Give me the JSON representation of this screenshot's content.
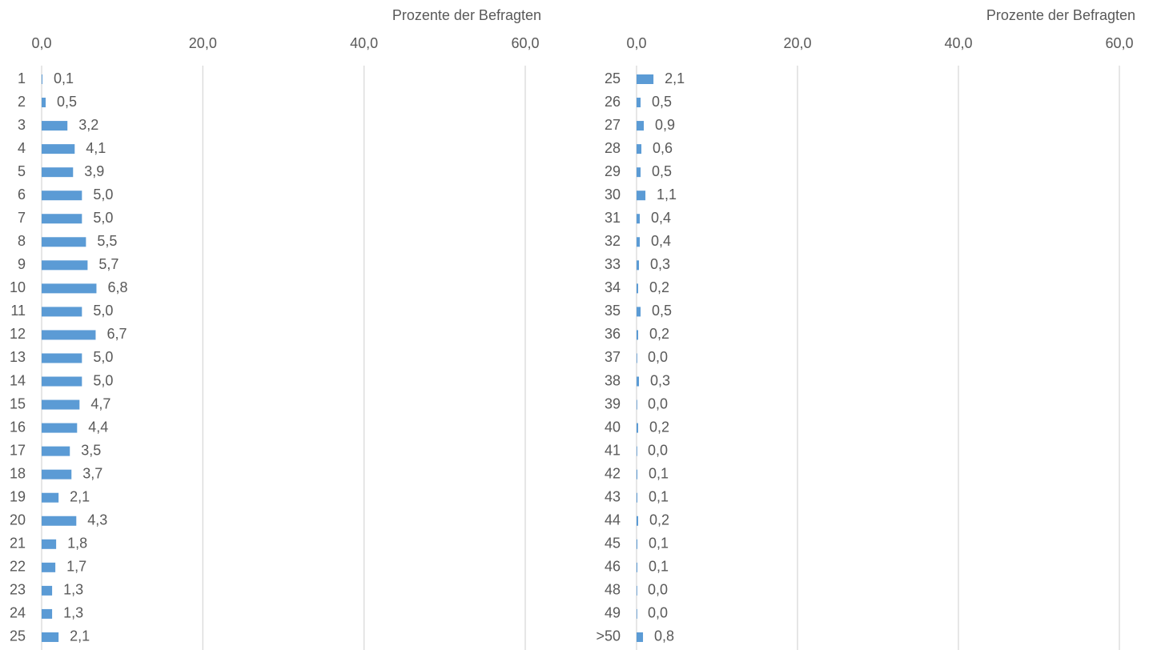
{
  "chart_data": [
    {
      "type": "barh",
      "x_label": "Prozente der Befragten",
      "color": "#5b9bd5",
      "categories": [
        "1",
        "2",
        "3",
        "4",
        "5",
        "6",
        "7",
        "8",
        "9",
        "10",
        "11",
        "12",
        "13",
        "14",
        "15",
        "16",
        "17",
        "18",
        "19",
        "20",
        "21",
        "22",
        "23",
        "24",
        "25"
      ],
      "values": [
        0.1,
        0.5,
        3.2,
        4.1,
        3.9,
        5.0,
        5.0,
        5.5,
        5.7,
        6.8,
        5.0,
        6.7,
        5.0,
        5.0,
        4.7,
        4.4,
        3.5,
        3.7,
        2.1,
        4.3,
        1.8,
        1.7,
        1.3,
        1.3,
        2.1
      ],
      "value_labels": [
        "0,1",
        "0,5",
        "3,2",
        "4,1",
        "3,9",
        "5,0",
        "5,0",
        "5,5",
        "5,7",
        "6,8",
        "5,0",
        "6,7",
        "5,0",
        "5,0",
        "4,7",
        "4,4",
        "3,5",
        "3,7",
        "2,1",
        "4,3",
        "1,8",
        "1,7",
        "1,3",
        "1,3",
        "2,1"
      ],
      "xlim": [
        0,
        60
      ],
      "xticks": [
        {
          "value": 0,
          "label": "0,0"
        },
        {
          "value": 20,
          "label": "20,0"
        },
        {
          "value": 40,
          "label": "40,0"
        },
        {
          "value": 60,
          "label": "60,0"
        }
      ],
      "grid": true
    },
    {
      "type": "barh",
      "x_label": "Prozente der Befragten",
      "color": "#5b9bd5",
      "categories": [
        "25",
        "26",
        "27",
        "28",
        "29",
        "30",
        "31",
        "32",
        "33",
        "34",
        "35",
        "36",
        "37",
        "38",
        "39",
        "40",
        "41",
        "42",
        "43",
        "44",
        "45",
        "46",
        "48",
        "49",
        ">50"
      ],
      "values": [
        2.1,
        0.5,
        0.9,
        0.6,
        0.5,
        1.1,
        0.4,
        0.4,
        0.3,
        0.2,
        0.5,
        0.2,
        0.0,
        0.3,
        0.0,
        0.2,
        0.0,
        0.1,
        0.1,
        0.2,
        0.1,
        0.1,
        0.0,
        0.0,
        0.8
      ],
      "value_labels": [
        "2,1",
        "0,5",
        "0,9",
        "0,6",
        "0,5",
        "1,1",
        "0,4",
        "0,4",
        "0,3",
        "0,2",
        "0,5",
        "0,2",
        "0,0",
        "0,3",
        "0,0",
        "0,2",
        "0,0",
        "0,1",
        "0,1",
        "0,2",
        "0,1",
        "0,1",
        "0,0",
        "0,0",
        "0,8"
      ],
      "xlim": [
        0,
        60
      ],
      "xticks": [
        {
          "value": 0,
          "label": "0,0"
        },
        {
          "value": 20,
          "label": "20,0"
        },
        {
          "value": 40,
          "label": "40,0"
        },
        {
          "value": 60,
          "label": "60,0"
        }
      ],
      "grid": true
    }
  ]
}
